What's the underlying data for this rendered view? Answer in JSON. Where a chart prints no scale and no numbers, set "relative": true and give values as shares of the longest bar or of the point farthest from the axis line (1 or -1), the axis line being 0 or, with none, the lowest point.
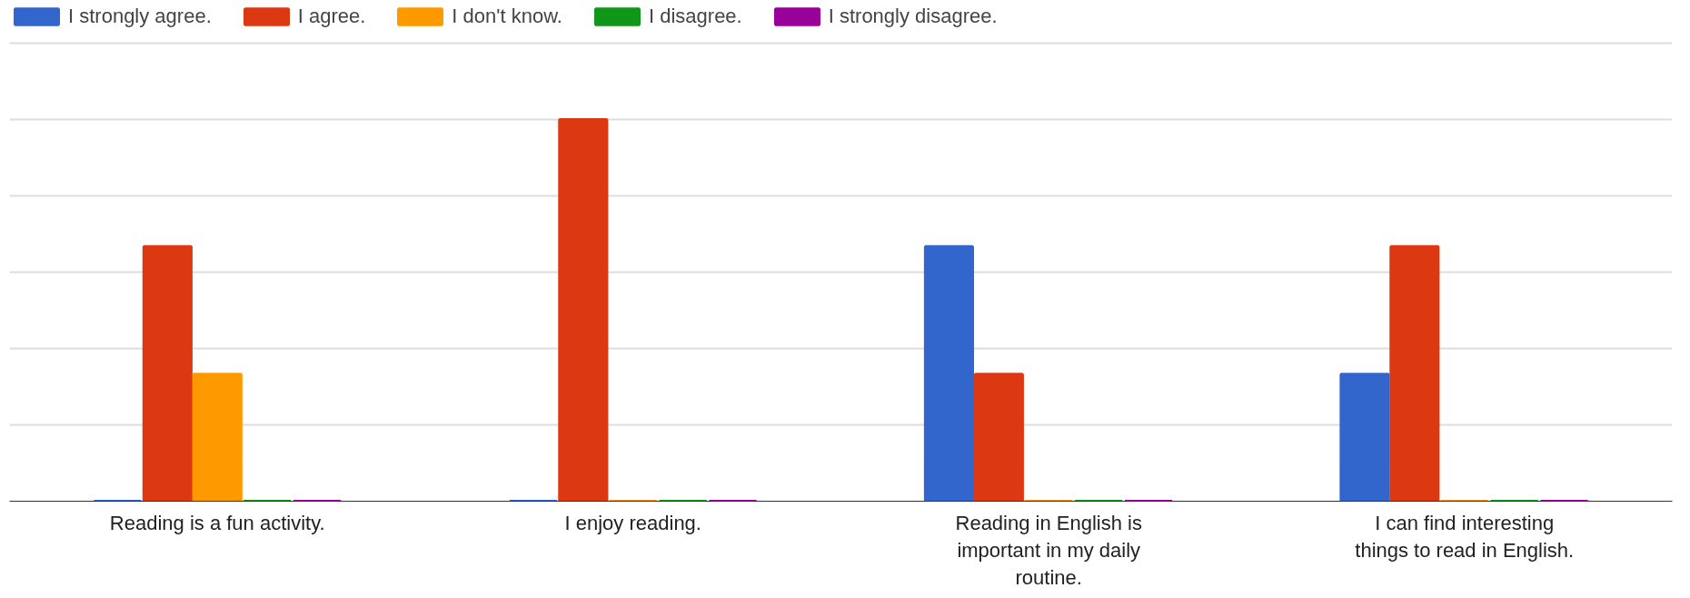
{
  "chart_data": {
    "type": "bar",
    "relative": true,
    "categories": [
      "Reading is a fun activity.",
      "I enjoy reading.",
      "Reading in English is important in my daily routine.",
      "I can find interesting things to read in English."
    ],
    "series": [
      {
        "name": "I strongly agree.",
        "color": "#3366cc",
        "values": [
          0,
          0,
          0.667,
          0.333
        ]
      },
      {
        "name": "I agree.",
        "color": "#dc3912",
        "values": [
          0.667,
          1,
          0.333,
          0.667
        ]
      },
      {
        "name": "I don't know.",
        "color": "#ff9900",
        "values": [
          0.333,
          0,
          0,
          0
        ]
      },
      {
        "name": "I disagree.",
        "color": "#109618",
        "values": [
          0,
          0,
          0,
          0
        ]
      },
      {
        "name": "I strongly disagree.",
        "color": "#990099",
        "values": [
          0,
          0,
          0,
          0
        ]
      }
    ],
    "grid": "y",
    "legend": "top left"
  }
}
